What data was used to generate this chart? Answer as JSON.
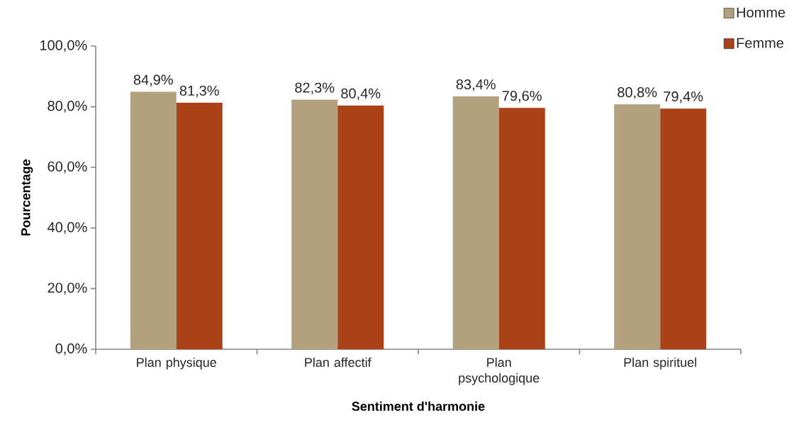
{
  "chart_data": {
    "type": "bar",
    "xlabel": "Sentiment d'harmonie",
    "ylabel": "Pourcentage",
    "categories": [
      "Plan physique",
      "Plan affectif",
      "Plan psychologique",
      "Plan spirituel"
    ],
    "series": [
      {
        "name": "Homme",
        "color": "#b3a07d",
        "values": [
          84.9,
          82.3,
          83.4,
          80.8
        ],
        "value_labels": [
          "84,9%",
          "82,3%",
          "83,4%",
          "80,8%"
        ]
      },
      {
        "name": "Femme",
        "color": "#ab4117",
        "values": [
          81.3,
          80.4,
          79.6,
          79.4
        ],
        "value_labels": [
          "81,3%",
          "80,4%",
          "79,6%",
          "79,4%"
        ]
      }
    ],
    "ylim": [
      0,
      100
    ],
    "yticks": [
      {
        "value": 0,
        "label": "0,0%"
      },
      {
        "value": 20,
        "label": "20,0%"
      },
      {
        "value": 40,
        "label": "40,0%"
      },
      {
        "value": 60,
        "label": "60,0%"
      },
      {
        "value": 80,
        "label": "80,0%"
      },
      {
        "value": 100,
        "label": "100,0%"
      }
    ],
    "legend": "top right"
  }
}
